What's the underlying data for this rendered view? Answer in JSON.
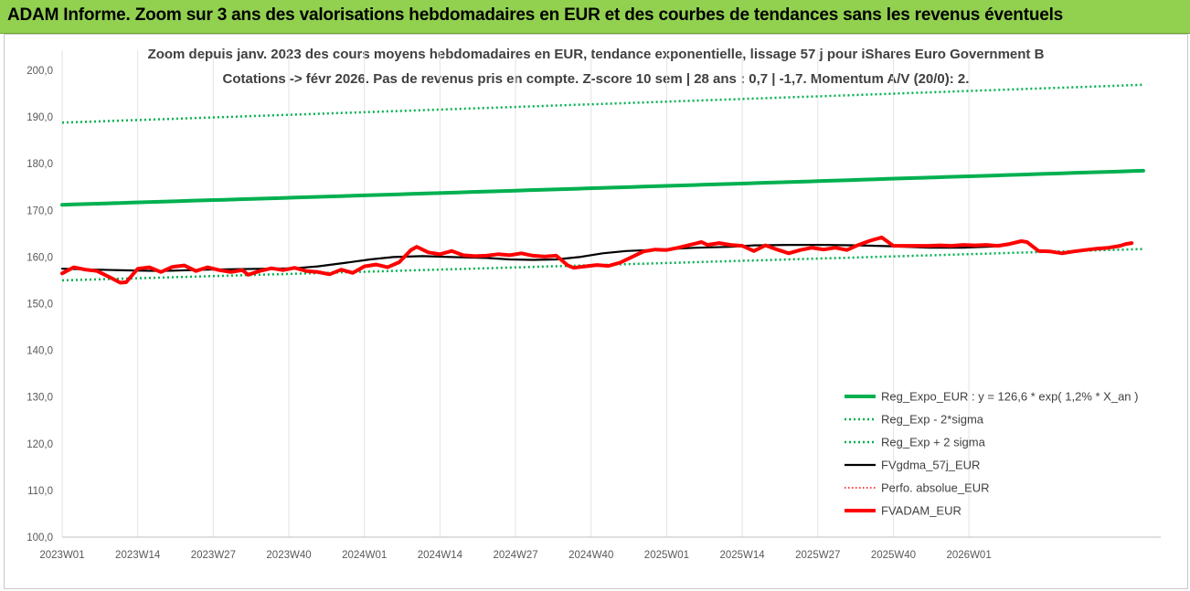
{
  "banner": {
    "title": "ADAM Informe. Zoom sur 3 ans des valorisations hebdomadaires en EUR et des courbes de tendances sans les revenus éventuels",
    "color": "#92d050"
  },
  "chart_data": {
    "type": "line",
    "title": "Zoom depuis janv. 2023 des cours moyens hebdomadaires en EUR, tendance exponentielle, lissage 57 j pour iShares Euro Government B",
    "subtitle": "Cotations -> févr 2026. Pas de revenus pris en compte. Z-score 10 sem | 28 ans : 0,7 | -1,7. Momentum A/V (20/0): 2.",
    "xlabel": "",
    "ylabel": "",
    "ylim": [
      100,
      200
    ],
    "yticks": [
      "100,0",
      "110,0",
      "120,0",
      "130,0",
      "140,0",
      "150,0",
      "160,0",
      "170,0",
      "180,0",
      "190,0",
      "200,0"
    ],
    "x_tick_labels": [
      "2023W01",
      "2023W14",
      "2023W27",
      "2023W40",
      "2024W01",
      "2024W14",
      "2024W27",
      "2024W40",
      "2025W01",
      "2025W14",
      "2025W27",
      "2025W40",
      "2026W01"
    ],
    "x_range_weeks": [
      1,
      162
    ],
    "grid": "vertical",
    "legend_placement": "bottom-right",
    "series": [
      {
        "name": "Reg_Expo_EUR : y = 126,6 * exp( 1,2% *  X_an )",
        "color": "#00b050",
        "style": "solid-thick",
        "points": [
          [
            1,
            171.2
          ],
          [
            162,
            177.5
          ]
        ]
      },
      {
        "name": "Reg_Exp - 2*sigma",
        "color": "#00b050",
        "style": "dotted",
        "points": [
          [
            1,
            155.0
          ],
          [
            162,
            160.8
          ]
        ]
      },
      {
        "name": "Reg_Exp + 2 sigma",
        "color": "#00b050",
        "style": "dotted",
        "points": [
          [
            1,
            188.8
          ],
          [
            162,
            195.8
          ]
        ]
      },
      {
        "name": "FVgdma_57j_EUR",
        "color": "#000000",
        "style": "solid",
        "points": [
          [
            1,
            157.5
          ],
          [
            10,
            157.2
          ],
          [
            18,
            157.0
          ],
          [
            26,
            157.3
          ],
          [
            36,
            157.5
          ],
          [
            41,
            157.6
          ],
          [
            45,
            158.0
          ],
          [
            50,
            158.8
          ],
          [
            54,
            159.5
          ],
          [
            58,
            160.0
          ],
          [
            63,
            160.2
          ],
          [
            68,
            160.0
          ],
          [
            74,
            159.8
          ],
          [
            78,
            159.5
          ],
          [
            82,
            159.4
          ],
          [
            86,
            159.5
          ],
          [
            90,
            160.0
          ],
          [
            94,
            160.8
          ],
          [
            98,
            161.3
          ],
          [
            104,
            161.6
          ],
          [
            110,
            162.0
          ],
          [
            116,
            162.2
          ],
          [
            120,
            162.5
          ],
          [
            126,
            162.6
          ],
          [
            132,
            162.6
          ],
          [
            138,
            162.5
          ],
          [
            144,
            162.3
          ],
          [
            150,
            162.0
          ],
          [
            156,
            162.0
          ],
          [
            162,
            162.3
          ]
        ]
      },
      {
        "name": "Perfo. absolue_EUR",
        "color": "#ff0000",
        "style": "dotted-thin",
        "points": []
      },
      {
        "name": "FVADAM_EUR",
        "color": "#ff0000",
        "style": "solid-thick",
        "points": [
          [
            1,
            156.5
          ],
          [
            3,
            157.8
          ],
          [
            5,
            157.3
          ],
          [
            7,
            157.0
          ],
          [
            9,
            155.8
          ],
          [
            11,
            154.5
          ],
          [
            12,
            154.6
          ],
          [
            14,
            157.5
          ],
          [
            16,
            157.8
          ],
          [
            18,
            156.8
          ],
          [
            20,
            157.9
          ],
          [
            22,
            158.2
          ],
          [
            24,
            157.0
          ],
          [
            26,
            157.8
          ],
          [
            28,
            157.2
          ],
          [
            30,
            156.8
          ],
          [
            32,
            157.2
          ],
          [
            33,
            156.2
          ],
          [
            35,
            157.0
          ],
          [
            37,
            157.6
          ],
          [
            39,
            157.2
          ],
          [
            41,
            157.7
          ],
          [
            43,
            157.0
          ],
          [
            45,
            156.8
          ],
          [
            47,
            156.3
          ],
          [
            49,
            157.3
          ],
          [
            51,
            156.6
          ],
          [
            53,
            158.0
          ],
          [
            55,
            158.4
          ],
          [
            57,
            157.8
          ],
          [
            59,
            158.9
          ],
          [
            61,
            161.5
          ],
          [
            62,
            162.2
          ],
          [
            64,
            161.0
          ],
          [
            66,
            160.6
          ],
          [
            68,
            161.3
          ],
          [
            70,
            160.4
          ],
          [
            72,
            160.2
          ],
          [
            74,
            160.3
          ],
          [
            76,
            160.6
          ],
          [
            78,
            160.4
          ],
          [
            80,
            160.8
          ],
          [
            82,
            160.3
          ],
          [
            84,
            160.1
          ],
          [
            86,
            160.3
          ],
          [
            88,
            158.2
          ],
          [
            89,
            157.7
          ],
          [
            91,
            158.0
          ],
          [
            93,
            158.3
          ],
          [
            95,
            158.1
          ],
          [
            97,
            158.8
          ],
          [
            99,
            160.0
          ],
          [
            101,
            161.2
          ],
          [
            103,
            161.6
          ],
          [
            105,
            161.5
          ],
          [
            107,
            162.0
          ],
          [
            109,
            162.6
          ],
          [
            111,
            163.2
          ],
          [
            112,
            162.6
          ],
          [
            114,
            163.0
          ],
          [
            116,
            162.6
          ],
          [
            118,
            162.4
          ],
          [
            120,
            161.3
          ],
          [
            122,
            162.5
          ],
          [
            124,
            161.6
          ],
          [
            126,
            160.8
          ],
          [
            128,
            161.5
          ],
          [
            130,
            162.0
          ],
          [
            132,
            161.6
          ],
          [
            134,
            162.0
          ],
          [
            136,
            161.5
          ],
          [
            138,
            162.6
          ],
          [
            140,
            163.5
          ],
          [
            142,
            164.2
          ],
          [
            144,
            162.4
          ],
          [
            146,
            162.4
          ],
          [
            148,
            162.4
          ],
          [
            150,
            162.4
          ],
          [
            152,
            162.5
          ],
          [
            154,
            162.4
          ],
          [
            156,
            162.6
          ],
          [
            158,
            162.5
          ],
          [
            160,
            162.6
          ],
          [
            162,
            162.4
          ],
          [
            164,
            162.8
          ],
          [
            166,
            163.4
          ],
          [
            167,
            163.2
          ],
          [
            169,
            161.3
          ],
          [
            171,
            161.2
          ],
          [
            173,
            160.8
          ],
          [
            175,
            161.2
          ],
          [
            177,
            161.5
          ],
          [
            179,
            161.8
          ],
          [
            181,
            162.0
          ],
          [
            183,
            162.4
          ],
          [
            184,
            162.8
          ],
          [
            185,
            163.0
          ]
        ]
      }
    ]
  }
}
